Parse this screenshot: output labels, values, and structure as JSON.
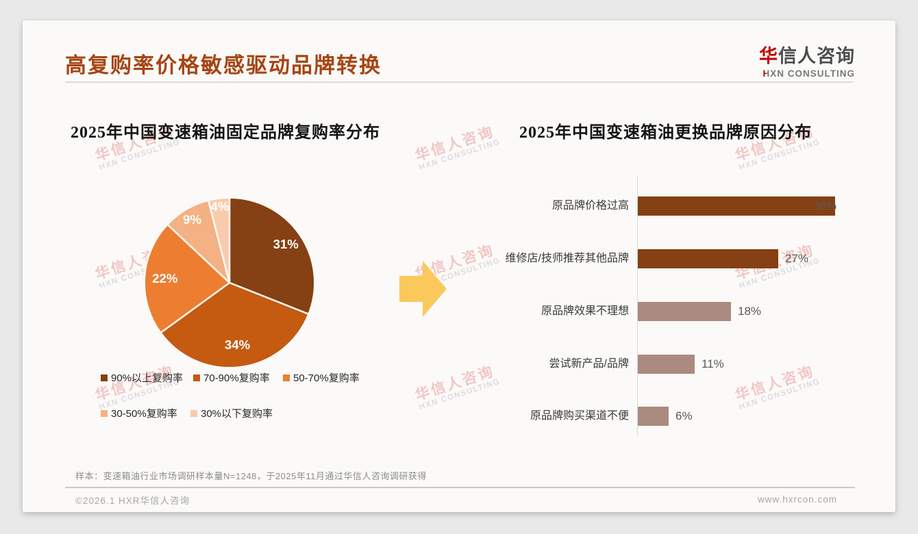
{
  "header": {
    "title": "高复购率价格敏感驱动品牌转换"
  },
  "logo": {
    "cn_first": "华",
    "cn_rest": "信人咨询",
    "en_first": "H",
    "en_rest": "XN CONSULTING"
  },
  "watermark": {
    "cn": "华信人咨询",
    "en": "HXN CONSULTING"
  },
  "chart_data": [
    {
      "type": "pie",
      "title": "2025年中国变速箱油固定品牌复购率分布",
      "labels": [
        "90%以上复购率",
        "70-90%复购率",
        "50-70%复购率",
        "30-50%复购率",
        "30%以下复购率"
      ],
      "values": [
        31,
        34,
        22,
        9,
        4
      ],
      "value_labels": [
        "31%",
        "34%",
        "22%",
        "9%",
        "4%"
      ],
      "colors": [
        "#854013",
        "#C55A11",
        "#ED7D31",
        "#F4B183",
        "#F8CBAD"
      ],
      "start_angle_deg": 0,
      "direction": "clockwise",
      "legend_position": "bottom"
    },
    {
      "type": "bar",
      "orientation": "horizontal",
      "title": "2025年中国变速箱油更换品牌原因分布",
      "categories": [
        "原品牌价格过高",
        "维修店/技师推荐其他品牌",
        "原品牌效果不理想",
        "尝试新产品/品牌",
        "原品牌购买渠道不便"
      ],
      "values": [
        38,
        27,
        18,
        11,
        6
      ],
      "value_labels": [
        "38%",
        "27%",
        "18%",
        "11%",
        "6%"
      ],
      "bar_colors": [
        "#854013",
        "#854013",
        "#AB8B80",
        "#AB8B80",
        "#AB8B80"
      ],
      "xlim": [
        0,
        40
      ],
      "grid": false,
      "legend_position": "none"
    }
  ],
  "arrow": {
    "color": "#FBC95B"
  },
  "palette": {
    "title_color": "#A64513",
    "page_bg": "#E9E9E9",
    "card_bg": "#FBFAF8",
    "logo_red": "#C00000",
    "watermark_pink": "#F1C6C4",
    "value_label_color": "#595959"
  },
  "footer": {
    "note": "样本：变速箱油行业市场调研样本量N=1248，于2025年11月通过华信人咨询调研获得",
    "copyright": "©2026.1 HXR华信人咨询",
    "website": "www.hxrcon.com"
  }
}
